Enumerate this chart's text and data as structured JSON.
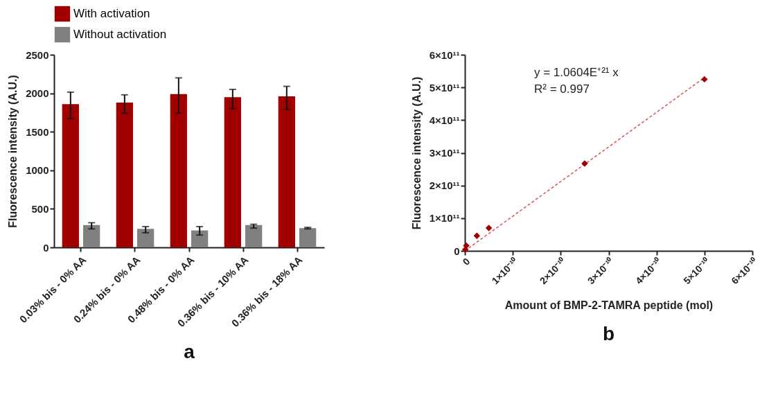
{
  "chart_data": [
    {
      "type": "bar",
      "title": "a",
      "ylabel": "Fluorescence intensity (A.U.)",
      "categories": [
        "0.03% bis - 0% AA",
        "0.24% bis - 0% AA",
        "0.48% bis - 0% AA",
        "0.36% bis - 10% AA",
        "0.36% bis - 18% AA"
      ],
      "series": [
        {
          "name": "With activation",
          "color": "#a00000",
          "values": [
            1860,
            1880,
            1990,
            1950,
            1960
          ],
          "errors": [
            [
              1670,
              2015
            ],
            [
              1740,
              1980
            ],
            [
              1740,
              2200
            ],
            [
              1800,
              2050
            ],
            [
              1790,
              2090
            ]
          ]
        },
        {
          "name": "Without activation",
          "color": "#808080",
          "values": [
            290,
            240,
            220,
            290,
            250
          ],
          "errors": [
            [
              240,
              320
            ],
            [
              190,
              270
            ],
            [
              160,
              270
            ],
            [
              250,
              300
            ],
            [
              240,
              260
            ]
          ]
        }
      ],
      "ylim": [
        0,
        2500
      ],
      "yticks": [
        0,
        500,
        1000,
        1500,
        2000,
        2500
      ],
      "grid": false,
      "legend": "top"
    },
    {
      "type": "scatter",
      "title": "b",
      "xlabel": "Amount of BMP-2-TAMRA peptide (mol)",
      "ylabel": "Fluorescence intensity (A.U.)",
      "series": [
        {
          "type": "scatter",
          "marker": "diamond",
          "color": "#a00000",
          "x": [
            1e-12,
            3e-12,
            2.5e-11,
            5e-11,
            2.5e-10,
            5e-10
          ],
          "values": [
            4000000000.0,
            16000000000.0,
            46000000000.0,
            70000000000.0,
            267000000000.0,
            525000000000.0
          ]
        },
        {
          "type": "line",
          "color": "#d9534f",
          "line_style": "dashed",
          "x": [
            0,
            5e-10
          ],
          "values": [
            0,
            530000000000.0
          ]
        }
      ],
      "xlim": [
        0,
        6e-10
      ],
      "xticks": [
        0,
        {
          "value": 1e-10,
          "label": "1×10⁻¹⁰"
        },
        {
          "value": 2e-10,
          "label": "2×10⁻¹⁰"
        },
        {
          "value": 3e-10,
          "label": "3×10⁻¹⁰"
        },
        {
          "value": 4e-10,
          "label": "4×10⁻¹⁰"
        },
        {
          "value": 5e-10,
          "label": "5×10⁻¹⁰"
        },
        {
          "value": 6e-10,
          "label": "6×10⁻¹⁰"
        }
      ],
      "ylim": [
        0,
        600000000000.0
      ],
      "yticks": [
        0,
        {
          "value": 100000000000.0,
          "label": "1×10¹¹"
        },
        {
          "value": 200000000000.0,
          "label": "2×10¹¹"
        },
        {
          "value": 300000000000.0,
          "label": "3×10¹¹"
        },
        {
          "value": 400000000000.0,
          "label": "4×10¹¹"
        },
        {
          "value": 500000000000.0,
          "label": "5×10¹¹"
        },
        {
          "value": 600000000000.0,
          "label": "6×10¹¹"
        }
      ],
      "annotations": [
        "y = 1.0604E⁺²¹ x",
        "R² = 0.997"
      ],
      "grid": false
    }
  ]
}
